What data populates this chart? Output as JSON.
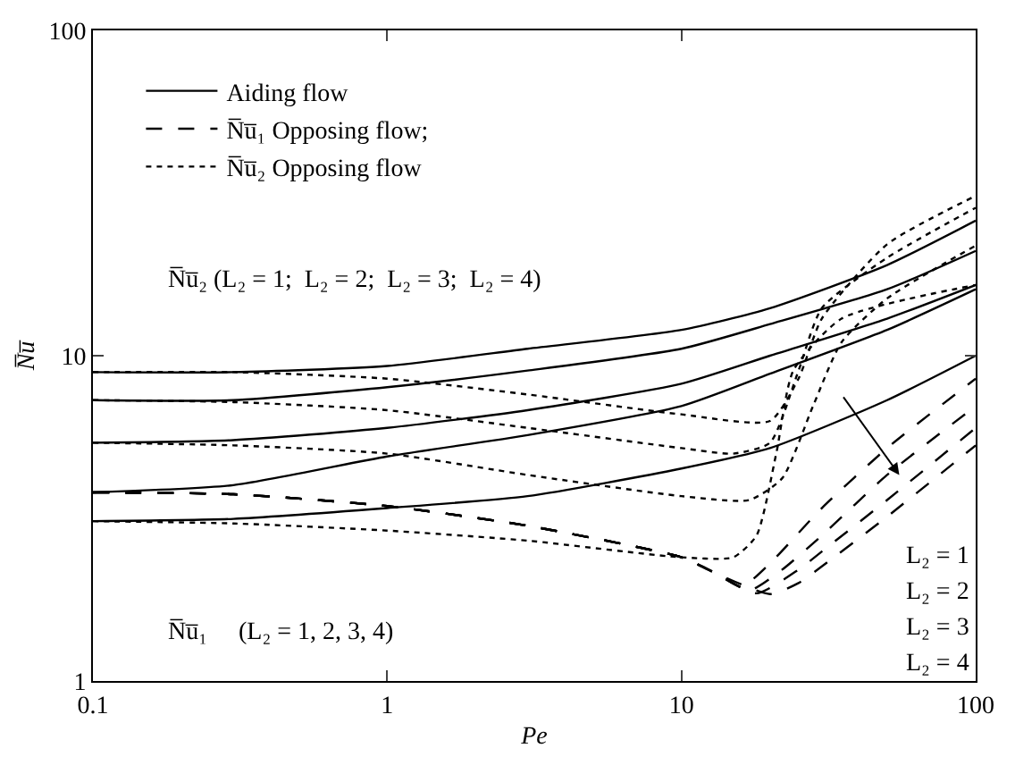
{
  "chart_data": {
    "type": "line",
    "xlabel": "Pe",
    "ylabel": "N̅u̅",
    "log": "xy",
    "grid": false,
    "legend": "top left",
    "marker": "none",
    "xlim": [
      0.1,
      100
    ],
    "ylim": [
      1,
      100
    ],
    "xticks": [
      0.1,
      1,
      10,
      100
    ],
    "yticks": [
      1,
      10,
      100
    ],
    "series": [
      {
        "name": "Aiding flow",
        "color": "#000000",
        "line_style": "solid",
        "x": [
          0.1,
          0.3,
          1,
          3,
          10,
          20,
          50,
          100
        ],
        "values": [
          8.9,
          8.9,
          9.3,
          10.5,
          12,
          14,
          19,
          26
        ]
      },
      {
        "color": "#000000",
        "line_style": "solid",
        "x": [
          0.1,
          0.3,
          1,
          3,
          10,
          20,
          50,
          100
        ],
        "values": [
          7.3,
          7.3,
          8,
          9,
          10.5,
          12.5,
          16,
          21
        ]
      },
      {
        "color": "#000000",
        "line_style": "solid",
        "x": [
          0.1,
          0.3,
          1,
          3,
          10,
          20,
          50,
          100
        ],
        "values": [
          5.4,
          5.5,
          6,
          6.8,
          8.2,
          10,
          13,
          16.5
        ]
      },
      {
        "color": "#000000",
        "line_style": "solid",
        "x": [
          0.1,
          0.3,
          1,
          3,
          10,
          20,
          50,
          100
        ],
        "values": [
          3.8,
          4,
          4.9,
          5.7,
          7,
          8.8,
          12,
          16
        ]
      },
      {
        "color": "#000000",
        "line_style": "solid",
        "x": [
          0.1,
          0.3,
          1,
          3,
          10,
          20,
          50,
          100
        ],
        "values": [
          3.1,
          3.15,
          3.4,
          3.7,
          4.5,
          5.2,
          7.3,
          10
        ]
      },
      {
        "name": "N̅u̅₁ Opposing flow;",
        "color": "#000000",
        "line_style": "dashed",
        "x": [
          0.1,
          0.3,
          1,
          3,
          10,
          13,
          16,
          20,
          30,
          50,
          100
        ],
        "values": [
          3.8,
          3.75,
          3.45,
          3,
          2.4,
          2.15,
          1.95,
          2.3,
          3.4,
          5.2,
          8.5
        ]
      },
      {
        "color": "#000000",
        "line_style": "dashed",
        "x": [
          0.1,
          0.3,
          1,
          3,
          10,
          13,
          17,
          22,
          30,
          50,
          100
        ],
        "values": [
          3.8,
          3.75,
          3.45,
          3,
          2.4,
          2.15,
          1.9,
          2.2,
          2.8,
          4.3,
          7
        ]
      },
      {
        "color": "#000000",
        "line_style": "dashed",
        "x": [
          0.1,
          0.3,
          1,
          3,
          10,
          13,
          18,
          25,
          30,
          50,
          100
        ],
        "values": [
          3.8,
          3.75,
          3.45,
          3,
          2.4,
          2.15,
          1.86,
          2.2,
          2.5,
          3.6,
          6
        ]
      },
      {
        "color": "#000000",
        "line_style": "dashed",
        "x": [
          0.1,
          0.3,
          1,
          3,
          10,
          13,
          20,
          25,
          30,
          50,
          100
        ],
        "values": [
          3.8,
          3.75,
          3.45,
          3,
          2.4,
          2.15,
          1.85,
          2,
          2.25,
          3.2,
          5.3
        ]
      },
      {
        "name": "N̅u̅₂ Opposing flow",
        "color": "#000000",
        "line_style": "dotted",
        "x": [
          0.1,
          0.3,
          1,
          3,
          10,
          20,
          25,
          30,
          50,
          100
        ],
        "values": [
          8.9,
          8.9,
          8.5,
          7.6,
          6.6,
          6.3,
          8.5,
          13,
          22,
          31
        ]
      },
      {
        "color": "#000000",
        "line_style": "dotted",
        "x": [
          0.1,
          0.3,
          1,
          3,
          10,
          15,
          20,
          25,
          30,
          50,
          100
        ],
        "values": [
          7.3,
          7.2,
          6.8,
          6,
          5.2,
          5,
          5.4,
          9,
          14,
          20,
          28.5
        ]
      },
      {
        "color": "#000000",
        "line_style": "dotted",
        "x": [
          0.1,
          0.3,
          1,
          3,
          10,
          17,
          22,
          28,
          35,
          50,
          100
        ],
        "values": [
          5.4,
          5.3,
          5,
          4.3,
          3.7,
          3.6,
          4.2,
          7,
          11,
          15,
          21.8
        ]
      },
      {
        "color": "#000000",
        "line_style": "dotted",
        "x": [
          0.1,
          0.3,
          1,
          3,
          10,
          15,
          18,
          21,
          24,
          35,
          100
        ],
        "values": [
          3.1,
          3.05,
          2.9,
          2.7,
          2.4,
          2.4,
          2.8,
          5,
          9,
          13,
          16.5
        ]
      }
    ],
    "annotations": [
      "N̅u̅₂ (L₂ = 1;  L₂ = 2;  L₂ = 3;  L₂ = 4)",
      "N̅u̅₁     (L₂ = 1, 2, 3, 4)",
      "L₂ = 1",
      "L₂ = 2",
      "L₂ = 3",
      "L₂ = 4"
    ]
  }
}
